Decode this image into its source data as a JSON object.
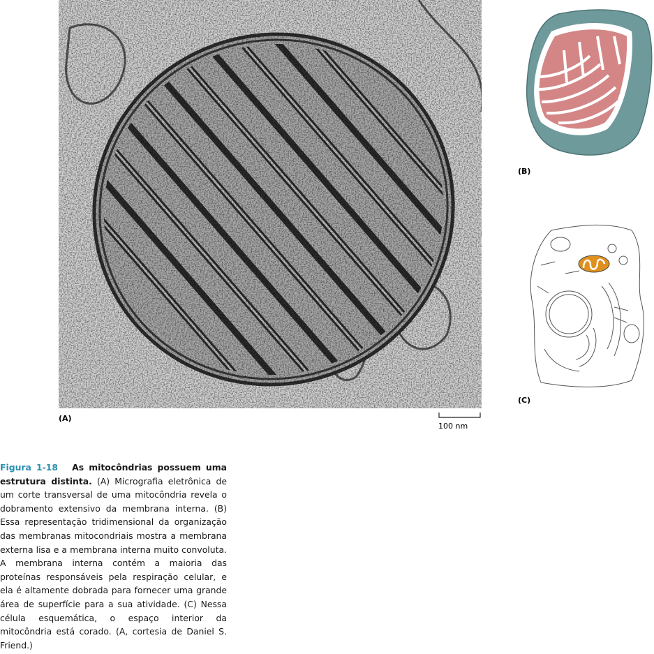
{
  "panels": {
    "a_label": "(A)",
    "b_label": "(B)",
    "c_label": "(C)",
    "scale_bar": "100 nm"
  },
  "caption": {
    "figure_label": "Figura 1-18",
    "title": "As mitocôndrias possuem uma estrutura distinta.",
    "body": "(A) Micrografia eletrônica de um corte transversal de uma mitocôndria revela o dobramento extensivo da membrana interna. (B) Essa representação tridimensional da organização das membranas mitocondriais mostra a membrana externa lisa e a membrana interna muito convoluta. A membrana interna contém a maioria das proteínas responsáveis pela respiração celular, e ela é altamente dobrada para fornecer uma grande área de superfície para a sua atividade. (C) Nessa célula esquemática, o espaço interior da mitocôndria está corado. (A, cortesia de Daniel S. Friend.)"
  }
}
